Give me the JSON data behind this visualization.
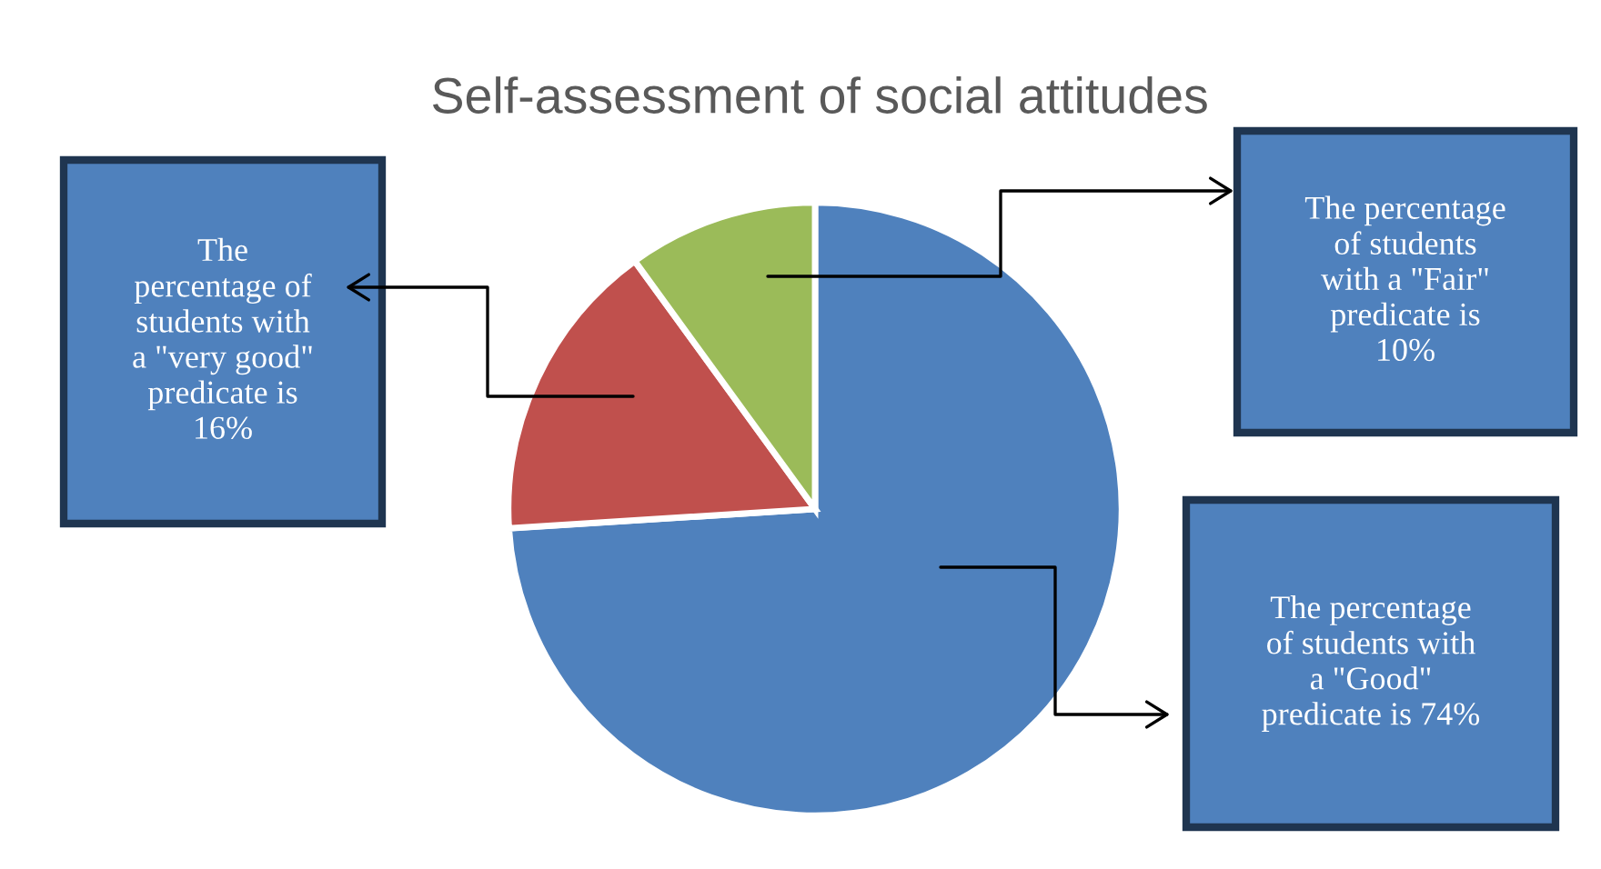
{
  "chart_data": {
    "type": "pie",
    "title": "Self-assessment of social attitudes",
    "categories": [
      null,
      null,
      null
    ],
    "values": [
      74,
      16,
      10
    ],
    "colors": [
      "#4f81bd",
      "#c0504d",
      "#9bbb59"
    ],
    "annotations": [
      "The percentage\nof students with\na \"Good\"\npredicate is 74%",
      "The\npercentage of\nstudents with\na \"very good\"\npredicate is\n16%",
      "The percentage\nof students\nwith a \"Fair\"\npredicate is\n10%"
    ]
  }
}
